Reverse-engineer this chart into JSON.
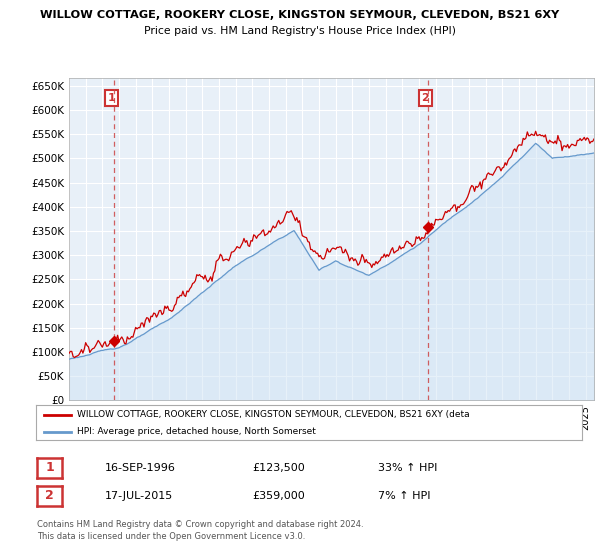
{
  "title1": "WILLOW COTTAGE, ROOKERY CLOSE, KINGSTON SEYMOUR, CLEVEDON, BS21 6XY",
  "title2": "Price paid vs. HM Land Registry's House Price Index (HPI)",
  "ylabel_ticks": [
    "£0",
    "£50K",
    "£100K",
    "£150K",
    "£200K",
    "£250K",
    "£300K",
    "£350K",
    "£400K",
    "£450K",
    "£500K",
    "£550K",
    "£600K",
    "£650K"
  ],
  "ytick_values": [
    0,
    50000,
    100000,
    150000,
    200000,
    250000,
    300000,
    350000,
    400000,
    450000,
    500000,
    550000,
    600000,
    650000
  ],
  "xlim_start": 1994.0,
  "xlim_end": 2025.5,
  "ylim_bottom": 0,
  "ylim_top": 665000,
  "sale1_year": 1996.71,
  "sale1_price": 123500,
  "sale2_year": 2015.54,
  "sale2_price": 359000,
  "vline1_x": 1996.71,
  "vline2_x": 2015.54,
  "red_color": "#cc0000",
  "blue_color": "#6699cc",
  "blue_fill_color": "#ddeeff",
  "annotation_box_color": "#cc3333",
  "legend_label_red": "WILLOW COTTAGE, ROOKERY CLOSE, KINGSTON SEYMOUR, CLEVEDON, BS21 6XY (deta",
  "legend_label_blue": "HPI: Average price, detached house, North Somerset",
  "table_row1": [
    "1",
    "16-SEP-1996",
    "£123,500",
    "33% ↑ HPI"
  ],
  "table_row2": [
    "2",
    "17-JUL-2015",
    "£359,000",
    "7% ↑ HPI"
  ],
  "footer": "Contains HM Land Registry data © Crown copyright and database right 2024.\nThis data is licensed under the Open Government Licence v3.0.",
  "bg_color": "#ffffff",
  "chart_bg_color": "#e8f0f8",
  "grid_color": "#ffffff"
}
